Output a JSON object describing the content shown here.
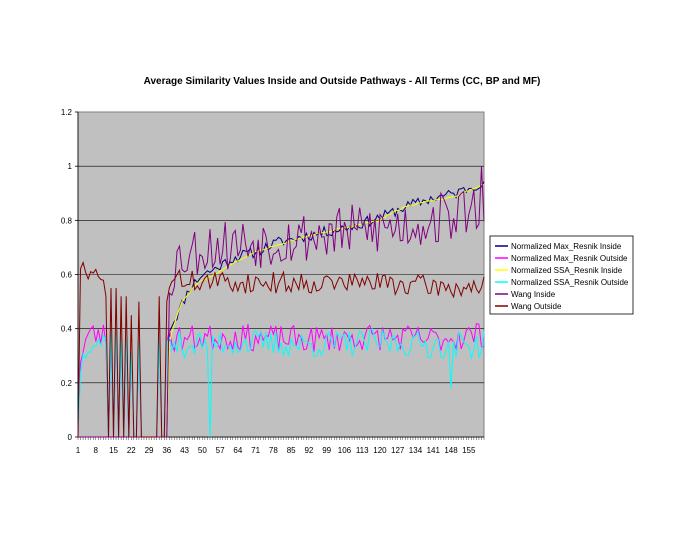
{
  "chart_data": {
    "type": "line",
    "title": "Average Similarity Values Inside and Outside Pathways - All Terms (CC, BP and MF)",
    "xlabel": "",
    "ylabel": "",
    "x_range": [
      1,
      161
    ],
    "ylim": [
      0,
      1.2
    ],
    "y_ticks": [
      "0",
      "0.2",
      "0.4",
      "0.6",
      "0.8",
      "1",
      "1.2"
    ],
    "x_ticks": [
      1,
      8,
      15,
      22,
      29,
      36,
      43,
      50,
      57,
      64,
      71,
      78,
      85,
      92,
      99,
      106,
      113,
      120,
      127,
      134,
      141,
      148,
      155
    ],
    "x_tick_labels": [
      "1",
      "8",
      "15",
      "22",
      "29",
      "36",
      "43",
      "50",
      "57",
      "64",
      "71",
      "78",
      "85",
      "92",
      "99",
      "106",
      "113",
      "120",
      "127",
      "134",
      "141",
      "148",
      "155"
    ],
    "grid": "horizontal",
    "plot_background": "#c0c0c0",
    "legend_position": "right",
    "series": [
      {
        "name": "Normalized Max_Resnik Inside",
        "color": "#000080",
        "keypoints": [
          [
            1,
            0
          ],
          [
            36,
            0
          ],
          [
            37,
            0.4
          ],
          [
            40,
            0.45
          ],
          [
            45,
            0.55
          ],
          [
            50,
            0.6
          ],
          [
            55,
            0.62
          ],
          [
            60,
            0.65
          ],
          [
            65,
            0.67
          ],
          [
            70,
            0.68
          ],
          [
            75,
            0.7
          ],
          [
            80,
            0.72
          ],
          [
            90,
            0.74
          ],
          [
            100,
            0.76
          ],
          [
            110,
            0.78
          ],
          [
            120,
            0.81
          ],
          [
            125,
            0.83
          ],
          [
            130,
            0.85
          ],
          [
            140,
            0.88
          ],
          [
            150,
            0.9
          ],
          [
            155,
            0.92
          ],
          [
            160,
            0.94
          ]
        ],
        "noise": 0.02,
        "seed": 11
      },
      {
        "name": "Normalized Max_Resnik Outside",
        "color": "#ff00ff",
        "keypoints": [
          [
            1,
            0
          ],
          [
            2,
            0.3
          ],
          [
            5,
            0.38
          ],
          [
            15,
            0.37
          ],
          [
            30,
            0.36
          ],
          [
            36,
            0.3
          ],
          [
            37,
            0.36
          ],
          [
            60,
            0.37
          ],
          [
            90,
            0.36
          ],
          [
            120,
            0.37
          ],
          [
            140,
            0.36
          ],
          [
            161,
            0.38
          ]
        ],
        "noise": 0.05,
        "seed": 23
      },
      {
        "name": "Normalized SSA_Resnik Inside",
        "color": "#ffff00",
        "keypoints": [
          [
            1,
            0
          ],
          [
            36,
            0
          ],
          [
            37,
            0.35
          ],
          [
            39,
            0.42
          ],
          [
            42,
            0.5
          ],
          [
            48,
            0.57
          ],
          [
            55,
            0.6
          ],
          [
            62,
            0.64
          ],
          [
            70,
            0.68
          ],
          [
            80,
            0.71
          ],
          [
            90,
            0.74
          ],
          [
            100,
            0.76
          ],
          [
            110,
            0.78
          ],
          [
            120,
            0.8
          ],
          [
            125,
            0.83
          ],
          [
            130,
            0.85
          ],
          [
            138,
            0.87
          ],
          [
            145,
            0.88
          ],
          [
            150,
            0.89
          ],
          [
            155,
            0.91
          ],
          [
            160,
            0.93
          ]
        ],
        "noise": 0.003,
        "seed": 5
      },
      {
        "name": "Normalized SSA_Resnik Outside",
        "color": "#00ffff",
        "keypoints": [
          [
            1,
            0
          ],
          [
            2,
            0.26
          ],
          [
            5,
            0.36
          ],
          [
            15,
            0.35
          ],
          [
            30,
            0.33
          ],
          [
            36,
            0.3
          ],
          [
            37,
            0.34
          ],
          [
            60,
            0.35
          ],
          [
            90,
            0.34
          ],
          [
            120,
            0.35
          ],
          [
            140,
            0.34
          ],
          [
            161,
            0.34
          ]
        ],
        "noise": 0.05,
        "seed": 37
      },
      {
        "name": "Wang Inside",
        "color": "#800080",
        "keypoints": [
          [
            1,
            0
          ],
          [
            36,
            0
          ],
          [
            37,
            0.58
          ],
          [
            40,
            0.66
          ],
          [
            50,
            0.7
          ],
          [
            70,
            0.72
          ],
          [
            90,
            0.74
          ],
          [
            110,
            0.76
          ],
          [
            130,
            0.78
          ],
          [
            150,
            0.82
          ],
          [
            161,
            0.86
          ]
        ],
        "noise": 0.1,
        "seed": 53
      },
      {
        "name": "Wang Outside",
        "color": "#800000",
        "keypoints": [
          [
            1,
            0
          ],
          [
            2,
            0.64
          ],
          [
            5,
            0.6
          ],
          [
            12,
            0.56
          ],
          [
            36,
            0.56
          ],
          [
            37,
            0.58
          ],
          [
            60,
            0.57
          ],
          [
            90,
            0.57
          ],
          [
            120,
            0.57
          ],
          [
            150,
            0.55
          ],
          [
            161,
            0.56
          ]
        ],
        "noise": 0.04,
        "seed": 71
      }
    ],
    "zero_drops": [
      {
        "x": 14,
        "value": 0.55
      },
      {
        "x": 16,
        "value": 0.55
      },
      {
        "x": 18,
        "value": 0.52
      },
      {
        "x": 20,
        "value": 0.52
      },
      {
        "x": 22,
        "value": 0.45
      },
      {
        "x": 25,
        "value": 0.5
      },
      {
        "x": 33,
        "value": 0.52
      },
      {
        "x": 36,
        "value": 0.5
      }
    ],
    "spikes": [
      {
        "series": "Normalized SSA_Resnik Outside",
        "x": 53,
        "value": 0.0
      },
      {
        "series": "Wang Inside",
        "x": 160,
        "value": 1.0
      },
      {
        "series": "Normalized SSA_Resnik Outside",
        "x": 148,
        "value": 0.18
      }
    ]
  }
}
